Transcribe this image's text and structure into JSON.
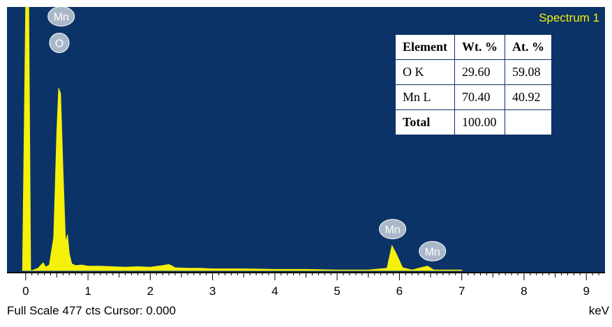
{
  "spectrum": {
    "title": "Spectrum 1",
    "status": "Full Scale 477 cts Cursor: 0.000",
    "unit": "keV"
  },
  "results_table": {
    "headers": [
      "Element",
      "Wt. %",
      "At. %"
    ],
    "rows": [
      {
        "element": "O K",
        "wt": "29.60",
        "at": "59.08"
      },
      {
        "element": "Mn L",
        "wt": "70.40",
        "at": "40.92"
      },
      {
        "element": "Total",
        "wt": "100.00",
        "at": ""
      }
    ]
  },
  "colors": {
    "plot_background": "#0b3368",
    "spectrum": "#f5f10a",
    "peak_marker": "#a9b8c9"
  },
  "chart_data": {
    "type": "area",
    "title": "Spectrum 1",
    "xlabel": "keV",
    "ylabel": "",
    "xlim": [
      -0.3,
      9.3
    ],
    "ylim": [
      0,
      477
    ],
    "x_ticks": [
      "0",
      "1",
      "2",
      "3",
      "4",
      "5",
      "6",
      "7",
      "8",
      "9"
    ],
    "series": [
      {
        "x": [
          -0.05,
          0.0,
          0.02,
          0.05,
          0.08,
          0.1,
          0.2,
          0.28,
          0.32,
          0.38,
          0.45,
          0.5,
          0.53,
          0.56,
          0.6,
          0.64,
          0.67,
          0.7,
          0.74,
          0.8,
          0.9,
          1.0,
          1.2,
          1.4,
          1.6,
          1.8,
          2.0,
          2.2,
          2.3,
          2.4,
          2.6,
          2.8,
          3.0,
          3.5,
          4.0,
          4.5,
          5.0,
          5.5,
          5.8,
          5.88,
          5.95,
          6.05,
          6.2,
          6.45,
          6.55,
          6.7,
          7.0
        ],
        "y": [
          0,
          477,
          477,
          477,
          0,
          0,
          4,
          14,
          6,
          10,
          60,
          250,
          330,
          320,
          180,
          50,
          65,
          30,
          12,
          9,
          10,
          8,
          8,
          7,
          6,
          7,
          6,
          9,
          11,
          5,
          4,
          4,
          3,
          3,
          2,
          2,
          1,
          1,
          4,
          45,
          30,
          5,
          1,
          8,
          1,
          1,
          1
        ]
      }
    ],
    "peak_labels": [
      {
        "label": "Mn",
        "x": 0.57,
        "y": 460
      },
      {
        "label": "O",
        "x": 0.54,
        "y": 412
      },
      {
        "label": "Mn",
        "x": 5.89,
        "y": 75
      },
      {
        "label": "Mn",
        "x": 6.53,
        "y": 35
      }
    ],
    "grid": false,
    "legend": "none"
  }
}
